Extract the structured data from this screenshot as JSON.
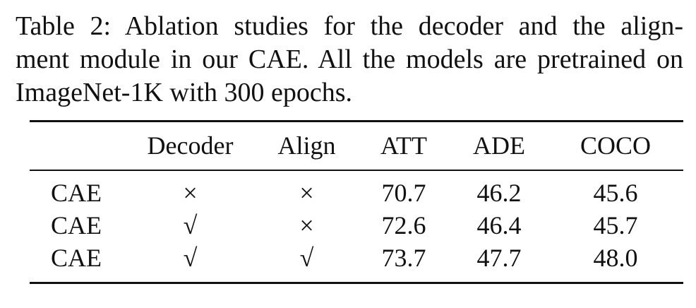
{
  "caption": {
    "line1": "Table 2:  Ablation studies for the decoder and the align-",
    "line2": "ment module in our CAE. All the models are pretrained on",
    "line3": "ImageNet-1K with 300 epochs."
  },
  "table": {
    "headers": [
      "",
      "Decoder",
      "Align",
      "ATT",
      "ADE",
      "COCO"
    ],
    "rows": [
      {
        "model": "CAE",
        "decoder": "×",
        "align": "×",
        "att": "70.7",
        "ade": "46.2",
        "coco": "45.6"
      },
      {
        "model": "CAE",
        "decoder": "√",
        "align": "×",
        "att": "72.6",
        "ade": "46.4",
        "coco": "45.7"
      },
      {
        "model": "CAE",
        "decoder": "√",
        "align": "√",
        "att": "73.7",
        "ade": "47.7",
        "coco": "48.0"
      }
    ]
  }
}
